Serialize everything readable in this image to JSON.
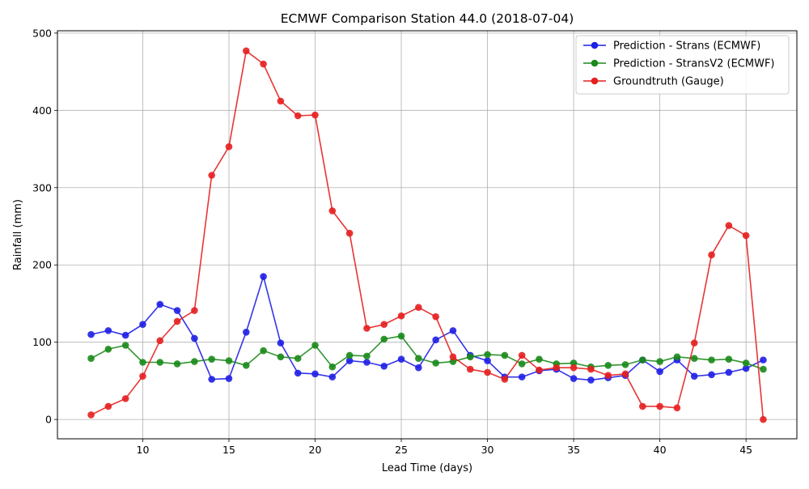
{
  "chart_data": {
    "type": "line",
    "title": "ECMWF Comparison Station 44.0 (2018-07-04)",
    "xlabel": "Lead Time (days)",
    "ylabel": "Rainfall (mm)",
    "xlim": [
      5.05,
      47.95
    ],
    "ylim": [
      -25,
      503
    ],
    "xticks": [
      10,
      15,
      20,
      25,
      30,
      35,
      40,
      45
    ],
    "yticks": [
      0,
      100,
      200,
      300,
      400,
      500
    ],
    "grid": true,
    "legend_position": "top-right",
    "x": [
      7,
      8,
      9,
      10,
      11,
      12,
      13,
      14,
      15,
      16,
      17,
      18,
      19,
      20,
      21,
      22,
      23,
      24,
      25,
      26,
      27,
      28,
      29,
      30,
      31,
      32,
      33,
      34,
      35,
      36,
      37,
      38,
      39,
      40,
      41,
      42,
      43,
      44,
      45,
      46
    ],
    "series": [
      {
        "name": "Prediction - Strans (ECMWF)",
        "color": "#1f1fe6",
        "values": [
          110,
          115,
          109,
          123,
          149,
          141,
          105,
          52,
          53,
          113,
          185,
          99,
          60,
          59,
          55,
          76,
          74,
          69,
          78,
          67,
          103,
          115,
          83,
          76,
          55,
          55,
          63,
          65,
          53,
          51,
          54,
          57,
          77,
          62,
          77,
          56,
          58,
          61,
          66,
          77
        ]
      },
      {
        "name": "Prediction - StransV2 (ECMWF)",
        "color": "#1a8a1a",
        "values": [
          79,
          91,
          96,
          74,
          74,
          72,
          75,
          78,
          76,
          70,
          89,
          81,
          79,
          96,
          68,
          83,
          82,
          104,
          108,
          79,
          73,
          75,
          81,
          84,
          83,
          72,
          78,
          72,
          73,
          68,
          70,
          71,
          77,
          75,
          81,
          79,
          77,
          78,
          73,
          65
        ]
      },
      {
        "name": "Groundtruth (Gauge)",
        "color": "#e61f1f",
        "values": [
          6,
          17,
          27,
          56,
          102,
          127,
          141,
          316,
          353,
          477,
          460,
          412,
          393,
          394,
          270,
          241,
          118,
          123,
          134,
          145,
          133,
          81,
          65,
          61,
          52,
          83,
          64,
          67,
          67,
          65,
          57,
          59,
          17,
          17,
          15,
          99,
          213,
          251,
          238,
          0
        ]
      }
    ]
  }
}
